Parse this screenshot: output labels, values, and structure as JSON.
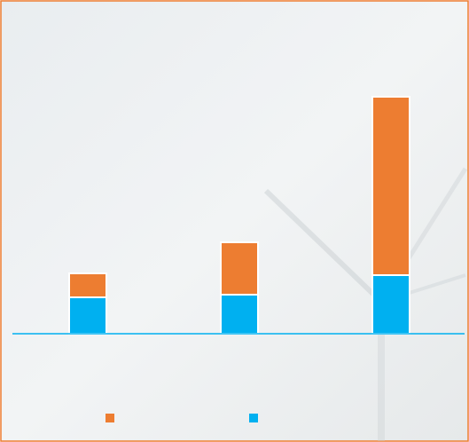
{
  "chart_data": {
    "type": "stacked_bar",
    "categories": [
      null,
      null,
      null
    ],
    "series": [
      {
        "color": "#00b0f0",
        "values": [
          41,
          44,
          66
        ]
      },
      {
        "color": "#ed7d31",
        "values": [
          27,
          59,
          201
        ]
      }
    ],
    "ylim": [
      0,
      280
    ],
    "legend": "bottom"
  }
}
